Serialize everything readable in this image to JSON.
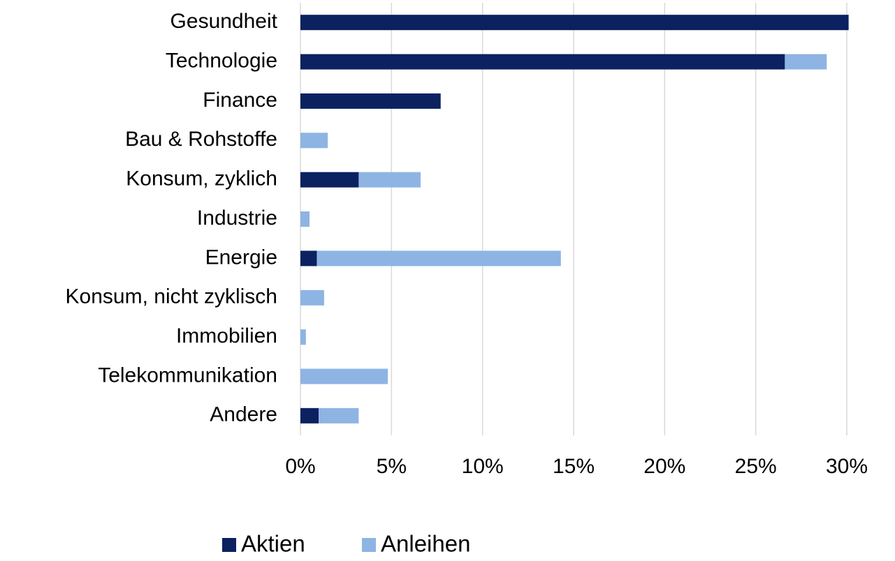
{
  "chart_data": {
    "type": "stacked_barh",
    "categories": [
      "Gesundheit",
      "Technologie",
      "Finance",
      "Bau & Rohstoffe",
      "Konsum, zyklich",
      "Industrie",
      "Energie",
      "Konsum, nicht zyklisch",
      "Immobilien",
      "Telekommunikation",
      "Andere"
    ],
    "series": [
      {
        "name": "Aktien",
        "color": "#0b2160",
        "values": [
          30.1,
          26.6,
          7.7,
          0,
          3.2,
          0,
          0.9,
          0,
          0,
          0,
          1.0
        ]
      },
      {
        "name": "Anleihen",
        "color": "#8eb4e3",
        "values": [
          0,
          2.3,
          0,
          1.5,
          3.4,
          0.5,
          13.4,
          1.3,
          0.3,
          4.8,
          2.2
        ]
      }
    ],
    "xlim": [
      0,
      30
    ],
    "xticks": [
      {
        "value": 0,
        "label": "0%"
      },
      {
        "value": 5,
        "label": "5%"
      },
      {
        "value": 10,
        "label": "10%"
      },
      {
        "value": 15,
        "label": "15%"
      },
      {
        "value": 20,
        "label": "20%"
      },
      {
        "value": 25,
        "label": "25%"
      },
      {
        "value": 30,
        "label": "30%"
      }
    ],
    "grid": true,
    "legend": "bottom"
  }
}
